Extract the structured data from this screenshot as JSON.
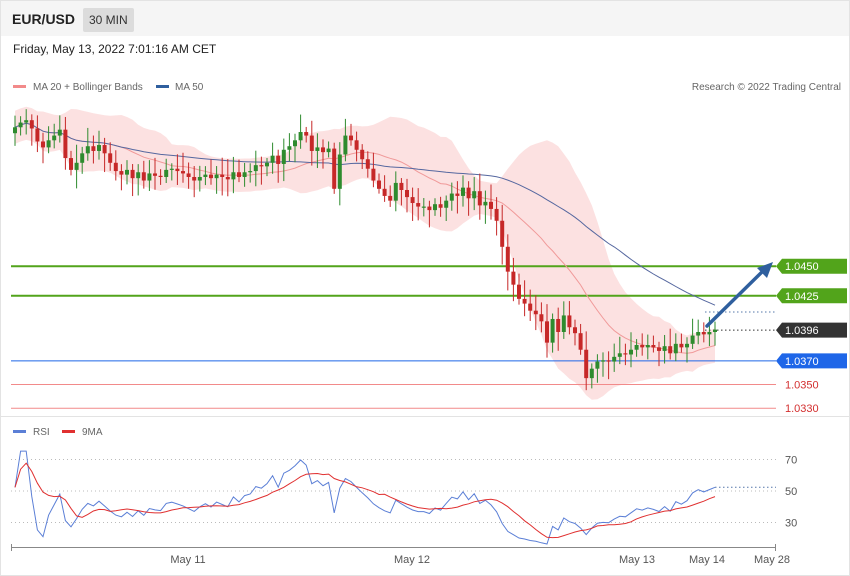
{
  "header": {
    "symbol": "EUR/USD",
    "timeframe": "30 MIN"
  },
  "datetime": "Friday, May 13, 2022 7:01:16 AM CET",
  "legend": {
    "ma20": "MA 20 + Bollinger Bands",
    "ma50": "MA 50",
    "copyright": "Research © 2022 Trading Central"
  },
  "rsi_legend": {
    "rsi": "RSI",
    "ma9": "9MA"
  },
  "colors": {
    "up": "#2e8b2e",
    "down": "#c62828",
    "band": "#fbdada",
    "ma20": "#f09999",
    "ma50": "#55679f",
    "green": "#52a41b",
    "blue": "#1e66e8",
    "red": "#f28a8a",
    "current": "#333333",
    "rsi": "#5b7fd6",
    "rsi_ma": "#e03030",
    "arrow": "#2f5f9e"
  },
  "chart_data": [
    {
      "type": "candlestick",
      "price_range": [
        1.0323,
        1.0645
      ],
      "x_labels": [
        "May 11",
        "May 12",
        "May 13",
        "May 14",
        "May 28"
      ],
      "levels": [
        {
          "value": 1.045,
          "label": "1.0450",
          "kind": "resistance"
        },
        {
          "value": 1.0425,
          "label": "1.0425",
          "kind": "resistance"
        },
        {
          "value": 1.0396,
          "label": "1.0396",
          "kind": "current"
        },
        {
          "value": 1.037,
          "label": "1.0370",
          "kind": "pivot"
        },
        {
          "value": 1.035,
          "label": "1.0350",
          "kind": "support"
        },
        {
          "value": 1.033,
          "label": "1.0330",
          "kind": "support"
        }
      ],
      "closes": [
        1.0567,
        1.0571,
        1.0573,
        1.0566,
        1.0555,
        1.055,
        1.0556,
        1.056,
        1.0565,
        1.0541,
        1.0531,
        1.0537,
        1.0545,
        1.0551,
        1.0547,
        1.0552,
        1.0545,
        1.0537,
        1.053,
        1.0527,
        1.0531,
        1.0524,
        1.0529,
        1.0522,
        1.0528,
        1.0526,
        1.0525,
        1.0531,
        1.0532,
        1.053,
        1.0528,
        1.0525,
        1.0522,
        1.0525,
        1.0527,
        1.0524,
        1.0527,
        1.0525,
        1.0523,
        1.0529,
        1.0525,
        1.0529,
        1.053,
        1.0535,
        1.0534,
        1.0537,
        1.0543,
        1.0536,
        1.0548,
        1.0551,
        1.0556,
        1.0563,
        1.056,
        1.0547,
        1.055,
        1.0546,
        1.0549,
        1.0515,
        1.0544,
        1.056,
        1.0556,
        1.0548,
        1.054,
        1.0532,
        1.0522,
        1.0515,
        1.0509,
        1.0505,
        1.052,
        1.0514,
        1.0508,
        1.0503,
        1.05,
        1.05,
        1.0497,
        1.0502,
        1.0499,
        1.0505,
        1.0511,
        1.0509,
        1.0516,
        1.0507,
        1.0513,
        1.0501,
        1.0504,
        1.0498,
        1.0488,
        1.0466,
        1.0445,
        1.0434,
        1.0422,
        1.0418,
        1.0412,
        1.0409,
        1.0403,
        1.0385,
        1.0405,
        1.0394,
        1.0408,
        1.0398,
        1.0393,
        1.0379,
        1.0355,
        1.0363,
        1.0369,
        1.037,
        1.0369,
        1.0373,
        1.0376,
        1.0375,
        1.0379,
        1.0383,
        1.0381,
        1.0383,
        1.0381,
        1.0378,
        1.0382,
        1.0376,
        1.0384,
        1.0381,
        1.0384,
        1.0391,
        1.0394,
        1.0392,
        1.0394,
        1.0396
      ],
      "series": [
        {
          "name": "MA 20"
        },
        {
          "name": "MA 50"
        }
      ]
    },
    {
      "type": "line",
      "name": "RSI",
      "y_ticks": [
        70,
        50,
        30
      ],
      "ylim": [
        11.6,
        80.9
      ],
      "series": [
        {
          "name": "RSI"
        },
        {
          "name": "9MA"
        }
      ]
    }
  ]
}
